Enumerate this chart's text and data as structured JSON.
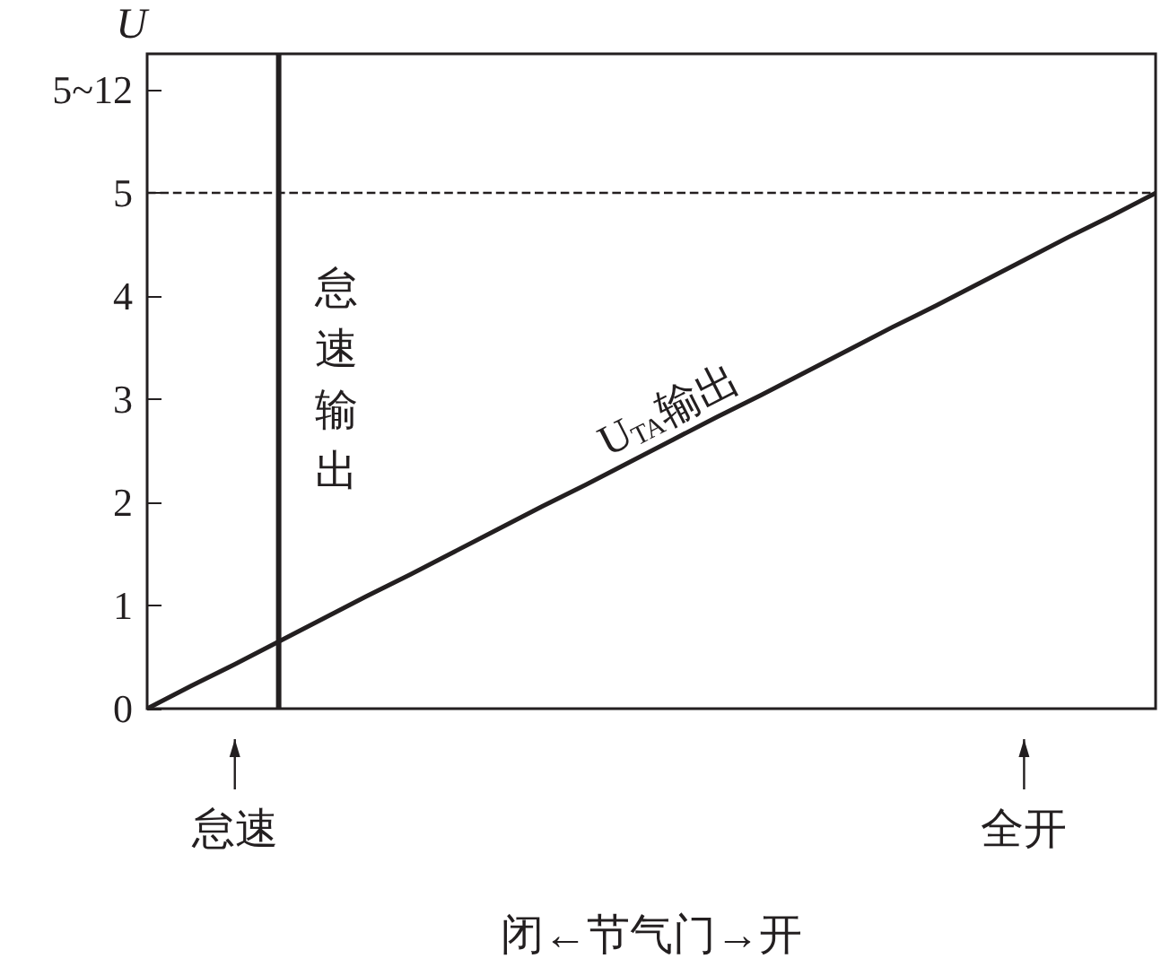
{
  "chart_data": {
    "type": "line",
    "xlabel": "闭←节气门→开",
    "ylabel": "U",
    "categories": [
      null,
      null,
      "怠速",
      null,
      null,
      null,
      null,
      null,
      null,
      null,
      null,
      null,
      null,
      null,
      null,
      null,
      null,
      null,
      null,
      null,
      "全开",
      null,
      null,
      null
    ],
    "ylim": [
      0,
      6.35
    ],
    "yticks": [
      0,
      1,
      2,
      3,
      4,
      5,
      {
        "value": 6,
        "label": "5~12"
      }
    ],
    "series": [
      {
        "name": "U$_{TA}$输出",
        "color": "#231f20",
        "values": [
          0,
          0.22,
          0.43,
          0.65,
          0.87,
          1.09,
          1.3,
          1.52,
          1.74,
          1.96,
          2.17,
          2.39,
          2.61,
          2.83,
          3.04,
          3.26,
          3.48,
          3.7,
          3.91,
          4.13,
          4.35,
          4.57,
          4.78,
          5
        ]
      },
      {
        "name": "怠速输出",
        "type": "bar",
        "color": "#231f20",
        "values": [
          null,
          null,
          null,
          6.35,
          null,
          null,
          null,
          null,
          null,
          null,
          null,
          null,
          null,
          null,
          null,
          null,
          null,
          null,
          null,
          null,
          null,
          null,
          null,
          null
        ]
      }
    ],
    "ref_lines": [
      {
        "axis": "y",
        "value": 5,
        "line_style": "dashed",
        "color": "#231f20"
      }
    ],
    "marker": "none",
    "line_style": "solid",
    "grid": false,
    "legend": false
  }
}
